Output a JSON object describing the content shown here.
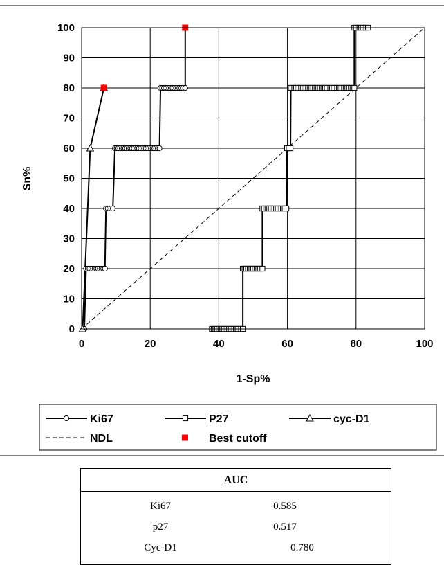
{
  "chart_data": {
    "type": "line",
    "title": "",
    "xlabel": "1-Sp%",
    "ylabel": "Sn%",
    "xlim": [
      0,
      100
    ],
    "ylim": [
      0,
      100
    ],
    "x_ticks": [
      "0",
      "20",
      "40",
      "60",
      "80",
      "100"
    ],
    "y_ticks": [
      "0",
      "10",
      "20",
      "30",
      "40",
      "50",
      "60",
      "70",
      "80",
      "90",
      "100"
    ],
    "grid": "horizontal",
    "legend_placement": "bottom",
    "series": [
      {
        "name": "Ki67",
        "marker": "circle",
        "color": "#000000",
        "points": [
          [
            0.8,
            0
          ],
          [
            1.3,
            20
          ],
          [
            1.8,
            20
          ],
          [
            2.3,
            20
          ],
          [
            2.8,
            20
          ],
          [
            3.3,
            20
          ],
          [
            3.8,
            20
          ],
          [
            4.3,
            20
          ],
          [
            4.8,
            20
          ],
          [
            5.3,
            20
          ],
          [
            5.8,
            20
          ],
          [
            6.3,
            20
          ],
          [
            6.8,
            20
          ],
          [
            7.1,
            40
          ],
          [
            7.6,
            40
          ],
          [
            8.1,
            40
          ],
          [
            8.6,
            40
          ],
          [
            9.1,
            40
          ],
          [
            9.7,
            60
          ],
          [
            10.2,
            60
          ],
          [
            10.7,
            60
          ],
          [
            11.2,
            60
          ],
          [
            11.7,
            60
          ],
          [
            12.2,
            60
          ],
          [
            12.7,
            60
          ],
          [
            13.2,
            60
          ],
          [
            13.7,
            60
          ],
          [
            14.2,
            60
          ],
          [
            14.7,
            60
          ],
          [
            15.2,
            60
          ],
          [
            15.7,
            60
          ],
          [
            16.2,
            60
          ],
          [
            16.7,
            60
          ],
          [
            17.2,
            60
          ],
          [
            17.7,
            60
          ],
          [
            18.2,
            60
          ],
          [
            18.7,
            60
          ],
          [
            19.2,
            60
          ],
          [
            19.7,
            60
          ],
          [
            20.2,
            60
          ],
          [
            20.7,
            60
          ],
          [
            21.2,
            60
          ],
          [
            21.7,
            60
          ],
          [
            22.2,
            60
          ],
          [
            22.7,
            60
          ],
          [
            23,
            80
          ],
          [
            23.5,
            80
          ],
          [
            24,
            80
          ],
          [
            24.5,
            80
          ],
          [
            25,
            80
          ],
          [
            25.5,
            80
          ],
          [
            26,
            80
          ],
          [
            26.5,
            80
          ],
          [
            27,
            80
          ],
          [
            27.5,
            80
          ],
          [
            28,
            80
          ],
          [
            28.5,
            80
          ],
          [
            29,
            80
          ],
          [
            29.5,
            80
          ],
          [
            30.2,
            80
          ],
          [
            30.2,
            100
          ]
        ]
      },
      {
        "name": "P27",
        "marker": "square",
        "color": "#000000",
        "points": [
          [
            38,
            0
          ],
          [
            38.5,
            0
          ],
          [
            39,
            0
          ],
          [
            39.5,
            0
          ],
          [
            40,
            0
          ],
          [
            40.5,
            0
          ],
          [
            41,
            0
          ],
          [
            41.5,
            0
          ],
          [
            42,
            0
          ],
          [
            42.5,
            0
          ],
          [
            43,
            0
          ],
          [
            43.5,
            0
          ],
          [
            44,
            0
          ],
          [
            44.5,
            0
          ],
          [
            45,
            0
          ],
          [
            45.5,
            0
          ],
          [
            46,
            0
          ],
          [
            46.5,
            0
          ],
          [
            47,
            0
          ],
          [
            47,
            20
          ],
          [
            47.5,
            20
          ],
          [
            48,
            20
          ],
          [
            48.5,
            20
          ],
          [
            49,
            20
          ],
          [
            49.5,
            20
          ],
          [
            50,
            20
          ],
          [
            50.5,
            20
          ],
          [
            51,
            20
          ],
          [
            51.5,
            20
          ],
          [
            52,
            20
          ],
          [
            52.7,
            20
          ],
          [
            52.7,
            40
          ],
          [
            53.2,
            40
          ],
          [
            53.7,
            40
          ],
          [
            54.2,
            40
          ],
          [
            54.7,
            40
          ],
          [
            55.2,
            40
          ],
          [
            55.7,
            40
          ],
          [
            56.2,
            40
          ],
          [
            56.7,
            40
          ],
          [
            57.2,
            40
          ],
          [
            57.7,
            40
          ],
          [
            58.2,
            40
          ],
          [
            58.7,
            40
          ],
          [
            59.2,
            40
          ],
          [
            59.7,
            40
          ],
          [
            59.9,
            60
          ],
          [
            60.4,
            60
          ],
          [
            60.9,
            60
          ],
          [
            61,
            80
          ],
          [
            61.5,
            80
          ],
          [
            62,
            80
          ],
          [
            62.5,
            80
          ],
          [
            63,
            80
          ],
          [
            63.5,
            80
          ],
          [
            64,
            80
          ],
          [
            64.5,
            80
          ],
          [
            65,
            80
          ],
          [
            65.5,
            80
          ],
          [
            66,
            80
          ],
          [
            66.5,
            80
          ],
          [
            67,
            80
          ],
          [
            67.5,
            80
          ],
          [
            68,
            80
          ],
          [
            68.5,
            80
          ],
          [
            69,
            80
          ],
          [
            69.5,
            80
          ],
          [
            70,
            80
          ],
          [
            70.5,
            80
          ],
          [
            71,
            80
          ],
          [
            71.5,
            80
          ],
          [
            72,
            80
          ],
          [
            72.5,
            80
          ],
          [
            73,
            80
          ],
          [
            73.5,
            80
          ],
          [
            74,
            80
          ],
          [
            74.5,
            80
          ],
          [
            75,
            80
          ],
          [
            75.5,
            80
          ],
          [
            76,
            80
          ],
          [
            76.5,
            80
          ],
          [
            77,
            80
          ],
          [
            77.5,
            80
          ],
          [
            78,
            80
          ],
          [
            78.5,
            80
          ],
          [
            79,
            80
          ],
          [
            79.5,
            80
          ],
          [
            79.5,
            100
          ],
          [
            80,
            100
          ],
          [
            80.5,
            100
          ],
          [
            81,
            100
          ],
          [
            81.5,
            100
          ],
          [
            82,
            100
          ],
          [
            82.5,
            100
          ],
          [
            83,
            100
          ],
          [
            83.5,
            100
          ]
        ]
      },
      {
        "name": "cyc-D1",
        "marker": "triangle",
        "color": "#000000",
        "points": [
          [
            0.3,
            0
          ],
          [
            2.5,
            60
          ],
          [
            6.5,
            80
          ]
        ]
      },
      {
        "name": "NDL",
        "marker": "none",
        "color": "#000000",
        "dashed": true,
        "points": [
          [
            0,
            0
          ],
          [
            100,
            100
          ]
        ]
      },
      {
        "name": "Best cutoff",
        "marker": "square-filled",
        "color": "#ff0000",
        "points": [
          [
            6.5,
            80
          ],
          [
            30.2,
            100
          ]
        ]
      }
    ]
  },
  "auc_table": {
    "title": "AUC",
    "rows": [
      {
        "name": "Ki67",
        "value": "0.585"
      },
      {
        "name": "p27",
        "value": "0.517"
      },
      {
        "name": "Cyc-D1",
        "value": "0.780"
      }
    ]
  }
}
